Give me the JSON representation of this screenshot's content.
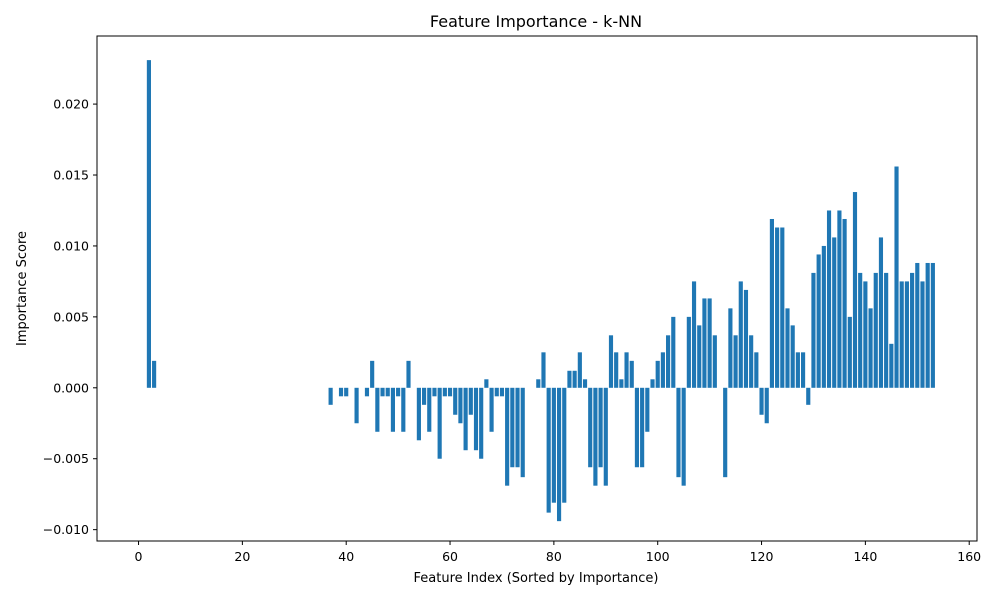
{
  "chart_data": {
    "type": "bar",
    "title": "Feature Importance - k-NN",
    "xlabel": "Feature Index (Sorted by Importance)",
    "ylabel": "Importance Score",
    "xlim": [
      -8,
      161.5
    ],
    "ylim": [
      -0.0108,
      0.0248
    ],
    "xticks": [
      0,
      20,
      40,
      60,
      80,
      100,
      120,
      140,
      160
    ],
    "xtick_labels": [
      "0",
      "20",
      "40",
      "60",
      "80",
      "100",
      "120",
      "140",
      "160"
    ],
    "yticks": [
      -0.01,
      -0.005,
      0.0,
      0.005,
      0.01,
      0.015,
      0.02
    ],
    "ytick_labels": [
      "−0.010",
      "−0.005",
      "0.000",
      "0.005",
      "0.010",
      "0.015",
      "0.020"
    ],
    "grid": false,
    "bar_color": "#1f77b4",
    "points": [
      {
        "x": 2,
        "y": 0.0231
      },
      {
        "x": 3,
        "y": 0.0019
      },
      {
        "x": 37,
        "y": -0.0012
      },
      {
        "x": 39,
        "y": -0.0006
      },
      {
        "x": 40,
        "y": -0.0006
      },
      {
        "x": 42,
        "y": -0.0025
      },
      {
        "x": 44,
        "y": -0.0006
      },
      {
        "x": 45,
        "y": 0.0019
      },
      {
        "x": 46,
        "y": -0.0031
      },
      {
        "x": 47,
        "y": -0.0006
      },
      {
        "x": 48,
        "y": -0.0006
      },
      {
        "x": 49,
        "y": -0.0031
      },
      {
        "x": 50,
        "y": -0.0006
      },
      {
        "x": 51,
        "y": -0.0031
      },
      {
        "x": 52,
        "y": 0.0019
      },
      {
        "x": 54,
        "y": -0.0037
      },
      {
        "x": 55,
        "y": -0.0012
      },
      {
        "x": 56,
        "y": -0.0031
      },
      {
        "x": 57,
        "y": -0.0006
      },
      {
        "x": 58,
        "y": -0.005
      },
      {
        "x": 59,
        "y": -0.0006
      },
      {
        "x": 60,
        "y": -0.0006
      },
      {
        "x": 61,
        "y": -0.0019
      },
      {
        "x": 62,
        "y": -0.0025
      },
      {
        "x": 63,
        "y": -0.0044
      },
      {
        "x": 64,
        "y": -0.0019
      },
      {
        "x": 65,
        "y": -0.0044
      },
      {
        "x": 66,
        "y": -0.005
      },
      {
        "x": 67,
        "y": 0.0006
      },
      {
        "x": 68,
        "y": -0.0031
      },
      {
        "x": 69,
        "y": -0.0006
      },
      {
        "x": 70,
        "y": -0.0006
      },
      {
        "x": 71,
        "y": -0.0069
      },
      {
        "x": 72,
        "y": -0.0056
      },
      {
        "x": 73,
        "y": -0.0056
      },
      {
        "x": 74,
        "y": -0.0063
      },
      {
        "x": 77,
        "y": 0.0006
      },
      {
        "x": 78,
        "y": 0.0025
      },
      {
        "x": 79,
        "y": -0.0088
      },
      {
        "x": 80,
        "y": -0.0081
      },
      {
        "x": 81,
        "y": -0.0094
      },
      {
        "x": 82,
        "y": -0.0081
      },
      {
        "x": 83,
        "y": 0.0012
      },
      {
        "x": 84,
        "y": 0.0012
      },
      {
        "x": 85,
        "y": 0.0025
      },
      {
        "x": 86,
        "y": 0.0006
      },
      {
        "x": 87,
        "y": -0.0056
      },
      {
        "x": 88,
        "y": -0.0069
      },
      {
        "x": 89,
        "y": -0.0056
      },
      {
        "x": 90,
        "y": -0.0069
      },
      {
        "x": 91,
        "y": 0.0037
      },
      {
        "x": 92,
        "y": 0.0025
      },
      {
        "x": 93,
        "y": 0.0006
      },
      {
        "x": 94,
        "y": 0.0025
      },
      {
        "x": 95,
        "y": 0.0019
      },
      {
        "x": 96,
        "y": -0.0056
      },
      {
        "x": 97,
        "y": -0.0056
      },
      {
        "x": 98,
        "y": -0.0031
      },
      {
        "x": 99,
        "y": 0.0006
      },
      {
        "x": 100,
        "y": 0.0019
      },
      {
        "x": 101,
        "y": 0.0025
      },
      {
        "x": 102,
        "y": 0.0037
      },
      {
        "x": 103,
        "y": 0.005
      },
      {
        "x": 104,
        "y": -0.0063
      },
      {
        "x": 105,
        "y": -0.0069
      },
      {
        "x": 106,
        "y": 0.005
      },
      {
        "x": 107,
        "y": 0.0075
      },
      {
        "x": 108,
        "y": 0.0044
      },
      {
        "x": 109,
        "y": 0.0063
      },
      {
        "x": 110,
        "y": 0.0063
      },
      {
        "x": 111,
        "y": 0.0037
      },
      {
        "x": 113,
        "y": -0.0063
      },
      {
        "x": 114,
        "y": 0.0056
      },
      {
        "x": 115,
        "y": 0.0037
      },
      {
        "x": 116,
        "y": 0.0075
      },
      {
        "x": 117,
        "y": 0.0069
      },
      {
        "x": 118,
        "y": 0.0037
      },
      {
        "x": 119,
        "y": 0.0025
      },
      {
        "x": 120,
        "y": -0.0019
      },
      {
        "x": 121,
        "y": -0.0025
      },
      {
        "x": 122,
        "y": 0.0119
      },
      {
        "x": 123,
        "y": 0.0113
      },
      {
        "x": 124,
        "y": 0.0113
      },
      {
        "x": 125,
        "y": 0.0056
      },
      {
        "x": 126,
        "y": 0.0044
      },
      {
        "x": 127,
        "y": 0.0025
      },
      {
        "x": 128,
        "y": 0.0025
      },
      {
        "x": 129,
        "y": -0.0012
      },
      {
        "x": 130,
        "y": 0.0081
      },
      {
        "x": 131,
        "y": 0.0094
      },
      {
        "x": 132,
        "y": 0.01
      },
      {
        "x": 133,
        "y": 0.0125
      },
      {
        "x": 134,
        "y": 0.0106
      },
      {
        "x": 135,
        "y": 0.0125
      },
      {
        "x": 136,
        "y": 0.0119
      },
      {
        "x": 137,
        "y": 0.005
      },
      {
        "x": 138,
        "y": 0.0138
      },
      {
        "x": 139,
        "y": 0.0081
      },
      {
        "x": 140,
        "y": 0.0075
      },
      {
        "x": 141,
        "y": 0.0056
      },
      {
        "x": 142,
        "y": 0.0081
      },
      {
        "x": 143,
        "y": 0.0106
      },
      {
        "x": 144,
        "y": 0.0081
      },
      {
        "x": 145,
        "y": 0.0031
      },
      {
        "x": 146,
        "y": 0.0156
      },
      {
        "x": 147,
        "y": 0.0075
      },
      {
        "x": 148,
        "y": 0.0075
      },
      {
        "x": 149,
        "y": 0.0081
      },
      {
        "x": 150,
        "y": 0.0088
      },
      {
        "x": 151,
        "y": 0.0075
      },
      {
        "x": 152,
        "y": 0.0088
      },
      {
        "x": 153,
        "y": 0.0088
      }
    ]
  }
}
